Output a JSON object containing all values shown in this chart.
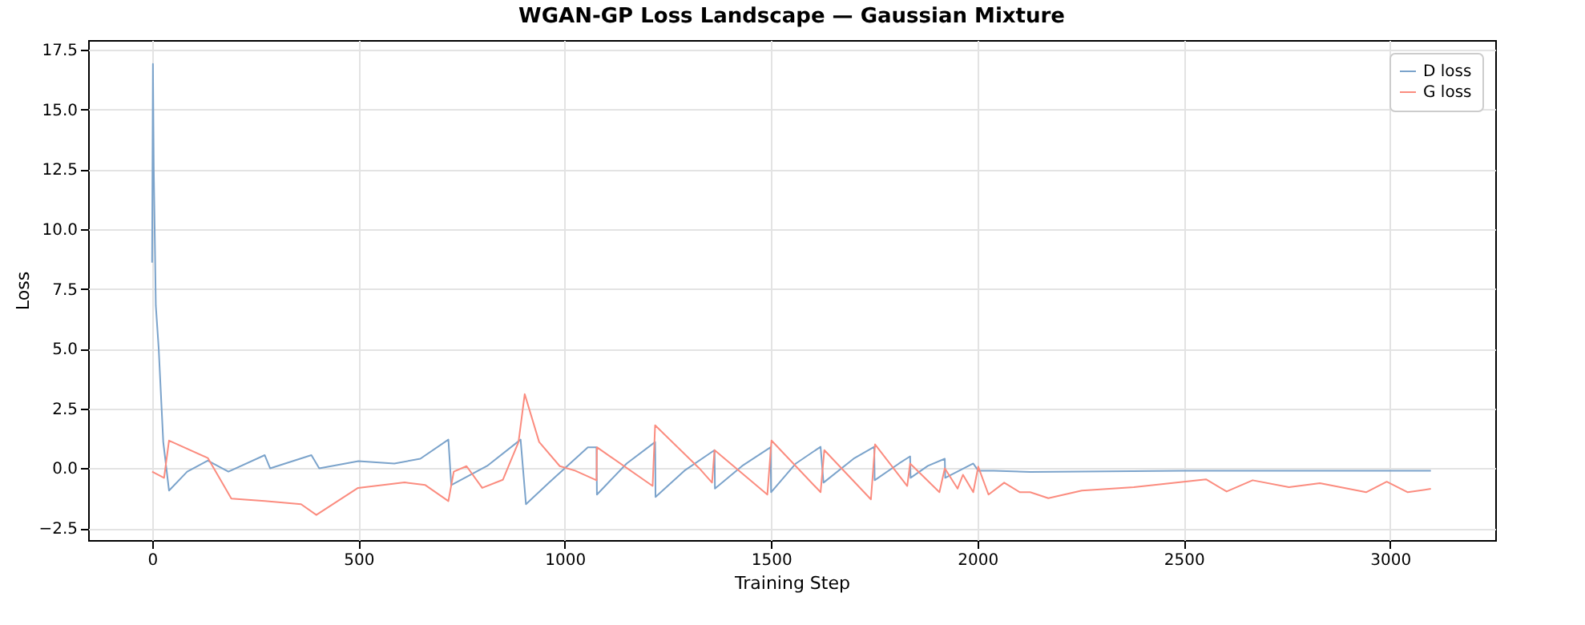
{
  "chart_data": {
    "type": "line",
    "title": "WGAN-GP Loss Landscape — Gaussian Mixture",
    "xlabel": "Training Step",
    "ylabel": "Loss",
    "xlim": [
      -155,
      3255
    ],
    "ylim": [
      -3,
      17.9
    ],
    "xticks": [
      0,
      500,
      1000,
      1500,
      2000,
      2500,
      3000
    ],
    "yticks": [
      -2.5,
      {
        "value": 0,
        "label": "0.0"
      },
      2.5,
      {
        "value": 5,
        "label": "5.0"
      },
      7.5,
      {
        "value": 10,
        "label": "10.0"
      },
      12.5,
      {
        "value": 15,
        "label": "15.0"
      },
      17.5
    ],
    "grid": true,
    "legend": "top right",
    "line_style": "solid",
    "series": [
      {
        "name": "D loss",
        "color": "#7ba3cb",
        "x": [
          0,
          2,
          4,
          9,
          16,
          27,
          41,
          85,
          135,
          185,
          273,
          286,
          386,
          405,
          500,
          587,
          650,
          718,
          725,
          812,
          893,
          906,
          962,
          1056,
          1077,
          1078,
          1150,
          1219,
          1220,
          1290,
          1363,
          1364,
          1430,
          1499,
          1500,
          1560,
          1620,
          1627,
          1700,
          1750,
          1751,
          1810,
          1837,
          1838,
          1880,
          1921,
          1922,
          1990,
          2002,
          2040,
          2128,
          2500,
          3000,
          3099
        ],
        "values": [
          8.6,
          16.9,
          12.5,
          6.8,
          5,
          1.1,
          -0.93,
          -0.14,
          0.32,
          -0.14,
          0.55,
          0.0,
          0.55,
          0.0,
          0.3,
          0.2,
          0.4,
          1.2,
          -0.7,
          0.1,
          1.2,
          -1.5,
          -0.6,
          0.88,
          0.88,
          -1.1,
          0.2,
          1.1,
          -1.2,
          -0.1,
          0.76,
          -0.85,
          0.1,
          0.88,
          -1.0,
          0.2,
          0.9,
          -0.6,
          0.4,
          0.9,
          -0.5,
          0.2,
          0.5,
          -0.4,
          0.1,
          0.4,
          -0.4,
          0.2,
          -0.1,
          -0.1,
          -0.15,
          -0.1,
          -0.1,
          -0.1
        ]
      },
      {
        "name": "G loss",
        "color": "#fb8c7f",
        "x": [
          0,
          29,
          41,
          135,
          173,
          192,
          273,
          361,
          398,
          499,
          612,
          662,
          718,
          731,
          762,
          800,
          850,
          888,
          903,
          938,
          988,
          1025,
          1077,
          1078,
          1213,
          1219,
          1326,
          1357,
          1363,
          1491,
          1501,
          1620,
          1629,
          1742,
          1752,
          1830,
          1837,
          1908,
          1921,
          1952,
          1965,
          1990,
          2002,
          2027,
          2065,
          2103,
          2128,
          2172,
          2253,
          2379,
          2554,
          2604,
          2667,
          2755,
          2830,
          2942,
          2992,
          3043,
          3099
        ],
        "values": [
          -0.14,
          -0.4,
          1.16,
          0.43,
          -0.7,
          -1.27,
          -1.37,
          -1.5,
          -1.95,
          -0.82,
          -0.59,
          -0.7,
          -1.37,
          -0.14,
          0.09,
          -0.82,
          -0.48,
          1.1,
          3.1,
          1.1,
          0.09,
          -0.1,
          -0.5,
          0.88,
          -0.74,
          1.8,
          0,
          -0.6,
          0.76,
          -1.1,
          1.16,
          -1.0,
          0.76,
          -1.3,
          1.0,
          -0.74,
          0.2,
          -1.0,
          0,
          -0.85,
          -0.27,
          -1.0,
          0.07,
          -1.1,
          -0.6,
          -1.0,
          -1.0,
          -1.25,
          -0.93,
          -0.79,
          -0.46,
          -0.97,
          -0.5,
          -0.79,
          -0.62,
          -1.0,
          -0.56,
          -1.0,
          -0.86
        ]
      }
    ]
  }
}
